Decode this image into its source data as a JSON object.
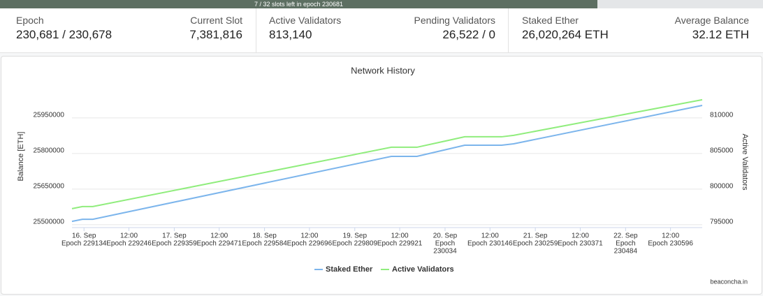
{
  "header": {
    "progress_text": "7 / 32 slots left in epoch 230681",
    "stats": [
      {
        "label": "Epoch",
        "value": "230,681 / 230,678"
      },
      {
        "label": "Current Slot",
        "value": "7,381,816"
      },
      {
        "label": "Active Validators",
        "value": "813,140"
      },
      {
        "label": "Pending Validators",
        "value": "26,522 / 0"
      },
      {
        "label": "Staked Ether",
        "value": "26,020,264 ETH"
      },
      {
        "label": "Average Balance",
        "value": "32.12 ETH"
      }
    ]
  },
  "chart_data": {
    "type": "line",
    "title": "Network History",
    "y_label": "Balance [ETH]",
    "y2_label": "Active Validators",
    "credit": "beaconcha.in",
    "x": [
      229104,
      229130,
      229156,
      229900,
      229964,
      230083,
      230175,
      230205,
      230675
    ],
    "xlim": [
      229104,
      230675
    ],
    "xticks": [
      {
        "value": 229134,
        "label": [
          "16. Sep",
          "Epoch 229134"
        ]
      },
      {
        "value": 229246,
        "label": [
          "12:00",
          "Epoch 229246"
        ]
      },
      {
        "value": 229359,
        "label": [
          "17. Sep",
          "Epoch 229359"
        ]
      },
      {
        "value": 229471,
        "label": [
          "12:00",
          "Epoch 229471"
        ]
      },
      {
        "value": 229584,
        "label": [
          "18. Sep",
          "Epoch 229584"
        ]
      },
      {
        "value": 229696,
        "label": [
          "12:00",
          "Epoch 229696"
        ]
      },
      {
        "value": 229809,
        "label": [
          "19. Sep",
          "Epoch 229809"
        ]
      },
      {
        "value": 229921,
        "label": [
          "12:00",
          "Epoch 229921"
        ]
      },
      {
        "value": 230034,
        "label": [
          "20. Sep",
          "Epoch",
          "230034"
        ]
      },
      {
        "value": 230146,
        "label": [
          "12:00",
          "Epoch 230146"
        ]
      },
      {
        "value": 230259,
        "label": [
          "21. Sep",
          "Epoch 230259"
        ]
      },
      {
        "value": 230371,
        "label": [
          "12:00",
          "Epoch 230371"
        ]
      },
      {
        "value": 230484,
        "label": [
          "22. Sep",
          "Epoch",
          "230484"
        ]
      },
      {
        "value": 230596,
        "label": [
          "12:00",
          "Epoch 230596"
        ]
      }
    ],
    "ylim": [
      25488000,
      26085000
    ],
    "yticks": [
      25500000,
      25650000,
      25800000,
      25950000
    ],
    "y2lim": [
      794600,
      814500
    ],
    "y2ticks": [
      795000,
      800000,
      805000,
      810000
    ],
    "grid": true,
    "series": [
      {
        "name": "Staked Ether",
        "color": "#7cb5ec",
        "values": [
          25514000,
          25523000,
          25523000,
          25788000,
          25788000,
          25835000,
          25835000,
          25841000,
          26002700
        ]
      },
      {
        "name": "Active Validators",
        "color": "#90ed7d",
        "axis": "y2",
        "values": [
          797255,
          797550,
          797550,
          805880,
          805880,
          807350,
          807350,
          807550,
          812550
        ]
      }
    ]
  }
}
